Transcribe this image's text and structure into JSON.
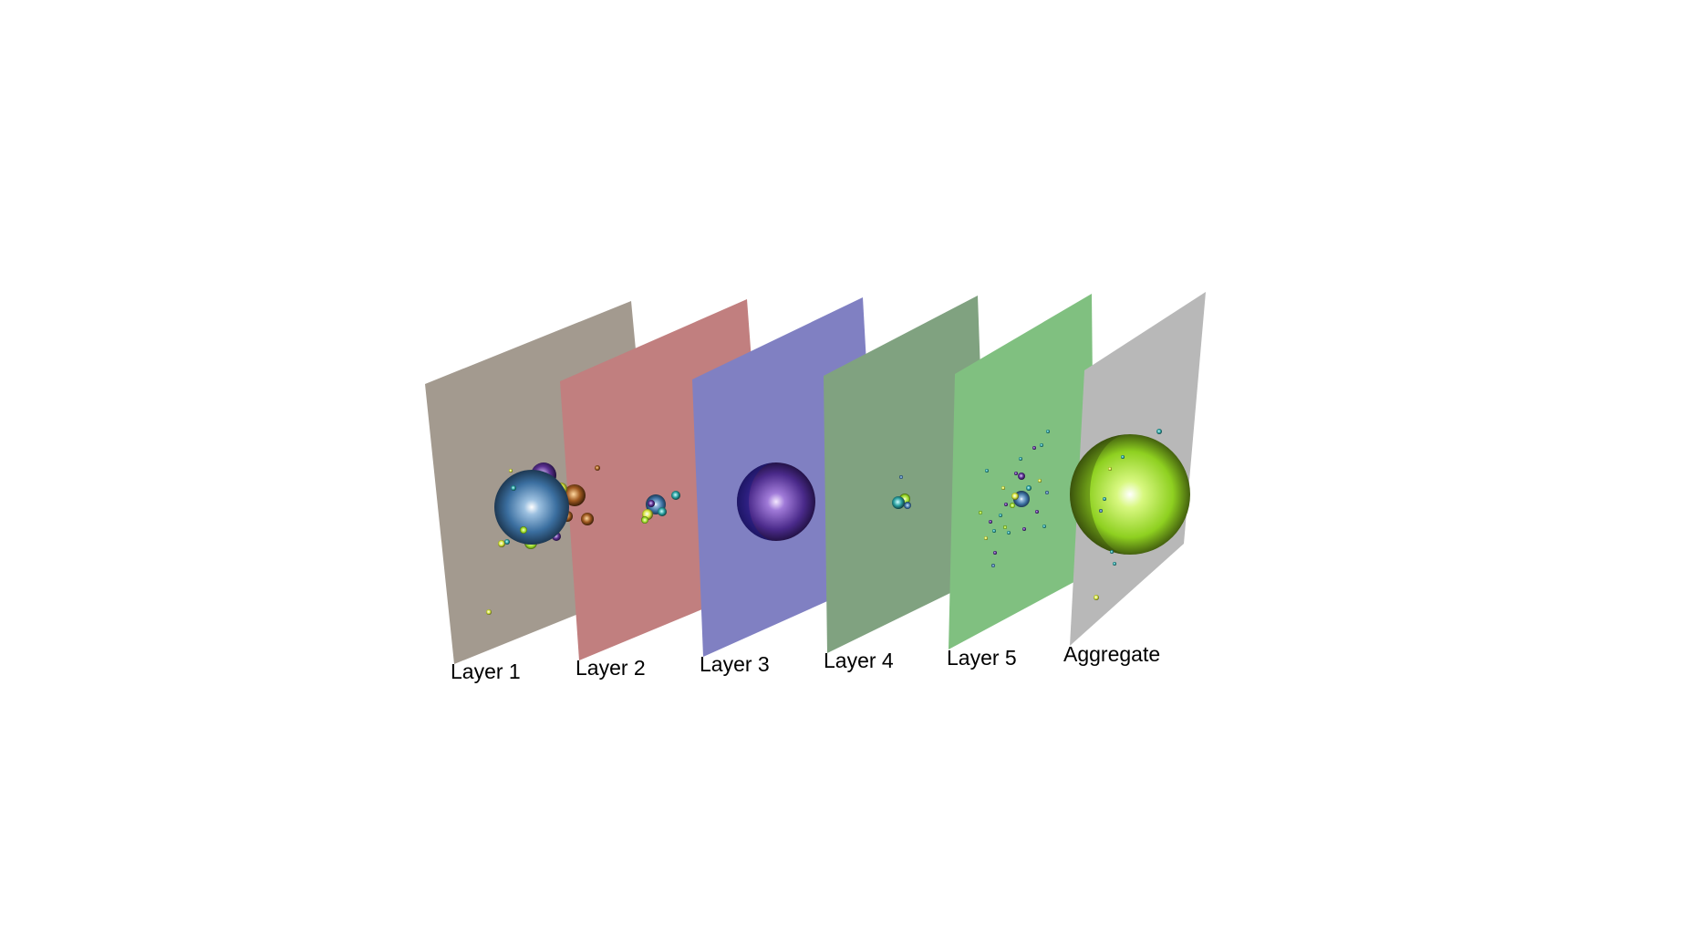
{
  "diagram": {
    "panels": [
      {
        "id": "layer-1",
        "label": "Layer 1",
        "color": "#a39a8f"
      },
      {
        "id": "layer-2",
        "label": "Layer 2",
        "color": "#c17f7f"
      },
      {
        "id": "layer-3",
        "label": "Layer 3",
        "color": "#8080c2"
      },
      {
        "id": "layer-4",
        "label": "Layer 4",
        "color": "#80a280"
      },
      {
        "id": "layer-5",
        "label": "Layer 5",
        "color": "#80c080"
      },
      {
        "id": "aggregate",
        "label": "Aggregate",
        "color": "#b8b8b8"
      }
    ],
    "node_palette": [
      "#3b6fa0",
      "#4a2a8a",
      "#7fd04a",
      "#d8e840",
      "#2aa0a0",
      "#a05a20",
      "#1a1a80"
    ]
  }
}
